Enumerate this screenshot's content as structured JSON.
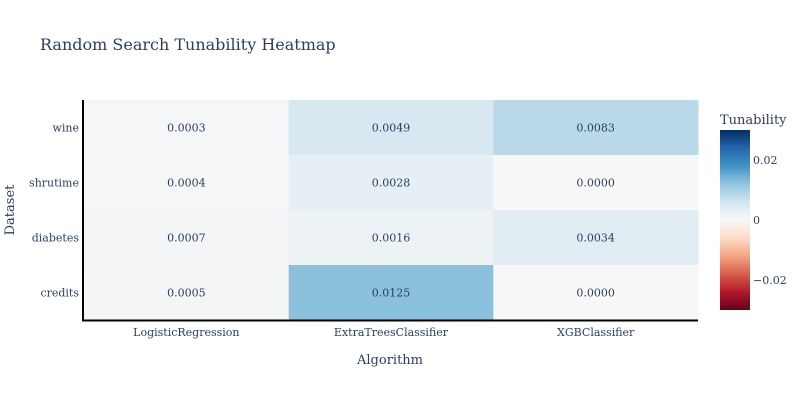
{
  "chart_data": {
    "type": "heatmap",
    "title": "Random Search Tunability Heatmap",
    "xlabel": "Algorithm",
    "ylabel": "Dataset",
    "x": [
      "LogisticRegression",
      "ExtraTreesClassifier",
      "XGBClassifier"
    ],
    "y": [
      "wine",
      "shrutime",
      "diabetes",
      "credits"
    ],
    "z": [
      [
        0.0003,
        0.0049,
        0.0083
      ],
      [
        0.0004,
        0.0028,
        0.0
      ],
      [
        0.0007,
        0.0016,
        0.0034
      ],
      [
        0.0005,
        0.0125,
        0.0
      ]
    ],
    "cell_labels": [
      [
        "0.0003",
        "0.0049",
        "0.0083"
      ],
      [
        "0.0004",
        "0.0028",
        "0.0000"
      ],
      [
        "0.0007",
        "0.0016",
        "0.0034"
      ],
      [
        "0.0005",
        "0.0125",
        "0.0000"
      ]
    ],
    "colorscale": "RdBu",
    "zrange": [
      -0.03,
      0.03
    ],
    "colorbar": {
      "title": "Tunability",
      "tickvals": [
        0.02,
        0,
        -0.02
      ],
      "ticktext": [
        "0.02",
        "0",
        "−0.02"
      ]
    }
  }
}
